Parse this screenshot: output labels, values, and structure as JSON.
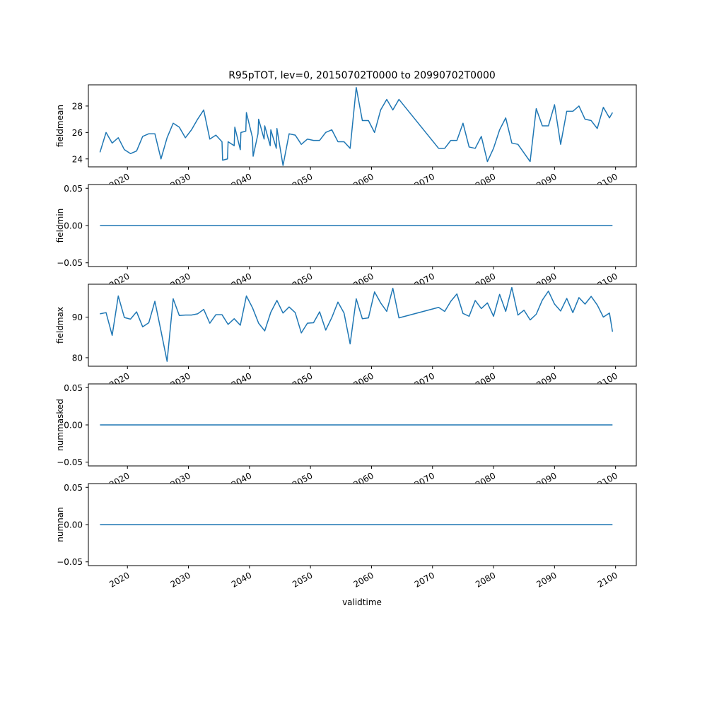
{
  "figure": {
    "title": "R95pTOT, lev=0, 20150702T0000 to 20990702T0000",
    "xlabel": "validtime"
  },
  "colors": {
    "line": "#1f77b4",
    "axes": "#000000",
    "background": "#ffffff"
  },
  "chart_data": [
    {
      "type": "line",
      "ylabel": "fieldmean",
      "ylim": [
        23.4,
        29.6
      ],
      "yticks": [
        24,
        26,
        28
      ],
      "xlim": [
        2013.6,
        2103.4
      ],
      "xticks": [
        2020,
        2030,
        2040,
        2050,
        2060,
        2070,
        2080,
        2090,
        2100
      ],
      "x": [
        2015.5,
        2016.5,
        2017.5,
        2018.5,
        2019.5,
        2020.5,
        2021.5,
        2022.5,
        2023.5,
        2024.5,
        2025.5,
        2026.5,
        2027.5,
        2028.5,
        2029.5,
        2030.5,
        2031.5,
        2032.5,
        2033.5,
        2034.5,
        2035.5,
        2035.6,
        2036.4,
        2036.5,
        2037.5,
        2037.6,
        2038.5,
        2038.6,
        2039.4,
        2039.5,
        2040.5,
        2040.6,
        2041.4,
        2041.5,
        2042.4,
        2042.5,
        2043.4,
        2043.5,
        2044.4,
        2044.5,
        2045.5,
        2046.5,
        2047.5,
        2048.5,
        2049.5,
        2050.5,
        2051.5,
        2052.5,
        2053.5,
        2054.5,
        2055.5,
        2056.5,
        2057.5,
        2058.5,
        2059.5,
        2060.5,
        2061.5,
        2062.5,
        2063.5,
        2064.5,
        2071.0,
        2072.0,
        2073.0,
        2074.0,
        2075.0,
        2076.0,
        2077.0,
        2078.0,
        2079.0,
        2080.0,
        2081.0,
        2082.0,
        2083.0,
        2084.0,
        2086.0,
        2087.0,
        2088.0,
        2089.0,
        2090.0,
        2091.0,
        2092.0,
        2093.0,
        2094.0,
        2095.0,
        2096.0,
        2097.0,
        2098.0,
        2099.0,
        2099.5
      ],
      "values": [
        24.5,
        26.0,
        25.2,
        25.6,
        24.7,
        24.4,
        24.6,
        25.7,
        25.9,
        25.9,
        24.0,
        25.6,
        26.7,
        26.4,
        25.6,
        26.2,
        27.0,
        27.7,
        25.5,
        25.8,
        25.3,
        23.9,
        24.0,
        25.3,
        25.0,
        26.4,
        24.7,
        26.0,
        26.1,
        27.5,
        25.6,
        24.2,
        25.9,
        27.0,
        25.5,
        26.5,
        25.0,
        26.2,
        24.8,
        26.3,
        23.5,
        25.9,
        25.8,
        25.1,
        25.5,
        25.4,
        25.4,
        26.0,
        26.2,
        25.3,
        25.3,
        24.8,
        29.4,
        26.9,
        26.9,
        26.0,
        27.7,
        28.5,
        27.7,
        28.5,
        24.8,
        24.8,
        25.4,
        25.4,
        26.7,
        24.9,
        24.8,
        25.7,
        23.8,
        24.8,
        26.2,
        27.1,
        25.2,
        25.1,
        23.8,
        27.8,
        26.5,
        26.5,
        28.1,
        25.1,
        27.6,
        27.6,
        28.0,
        27.0,
        26.9,
        26.3,
        27.9,
        27.1,
        27.5
      ]
    },
    {
      "type": "line",
      "ylabel": "fieldmin",
      "ylim": [
        -0.055,
        0.055
      ],
      "yticks": [
        -0.05,
        0.0,
        0.05
      ],
      "ytick_labels": [
        "−0.05",
        "0.00",
        "0.05"
      ],
      "xlim": [
        2013.6,
        2103.4
      ],
      "xticks": [
        2020,
        2030,
        2040,
        2050,
        2060,
        2070,
        2080,
        2090,
        2100
      ],
      "x": [
        2015.5,
        2099.5
      ],
      "values": [
        0.0,
        0.0
      ]
    },
    {
      "type": "line",
      "ylabel": "fieldmax",
      "ylim": [
        77.9,
        98.1
      ],
      "yticks": [
        80,
        90
      ],
      "xlim": [
        2013.6,
        2103.4
      ],
      "xticks": [
        2020,
        2030,
        2040,
        2050,
        2060,
        2070,
        2080,
        2090,
        2100
      ],
      "x": [
        2015.5,
        2016.5,
        2017.5,
        2018.5,
        2019.5,
        2020.5,
        2021.5,
        2022.5,
        2023.5,
        2024.5,
        2025.5,
        2026.5,
        2027.5,
        2028.5,
        2029.5,
        2030.5,
        2031.5,
        2032.5,
        2033.5,
        2034.5,
        2035.5,
        2036.5,
        2037.5,
        2038.5,
        2039.5,
        2040.5,
        2041.5,
        2042.5,
        2043.5,
        2044.5,
        2045.5,
        2046.5,
        2047.5,
        2048.5,
        2049.5,
        2050.5,
        2051.5,
        2052.5,
        2053.5,
        2054.5,
        2055.5,
        2056.5,
        2057.5,
        2058.5,
        2059.5,
        2060.5,
        2061.5,
        2062.5,
        2063.5,
        2064.5,
        2071.0,
        2072.0,
        2073.0,
        2074.0,
        2075.0,
        2076.0,
        2077.0,
        2078.0,
        2079.0,
        2080.0,
        2081.0,
        2082.0,
        2083.0,
        2084.0,
        2085.0,
        2086.0,
        2087.0,
        2088.0,
        2089.0,
        2090.0,
        2091.0,
        2092.0,
        2093.0,
        2094.0,
        2095.0,
        2096.0,
        2097.0,
        2098.0,
        2099.0,
        2099.5
      ],
      "values": [
        90.8,
        91.1,
        85.5,
        95.2,
        89.9,
        89.5,
        91.3,
        87.6,
        88.6,
        93.9,
        86.6,
        79.1,
        94.5,
        90.4,
        90.5,
        90.5,
        90.8,
        91.9,
        88.5,
        90.6,
        90.6,
        88.2,
        89.6,
        88.0,
        95.2,
        92.3,
        88.5,
        86.6,
        91.2,
        94.1,
        91.0,
        92.5,
        91.1,
        86.1,
        88.5,
        88.6,
        91.3,
        86.8,
        89.9,
        93.7,
        91.0,
        83.4,
        94.5,
        89.6,
        89.8,
        96.2,
        93.5,
        91.4,
        97.1,
        89.8,
        92.4,
        91.4,
        93.9,
        95.7,
        90.9,
        90.2,
        94.1,
        92.1,
        93.5,
        90.2,
        95.6,
        91.4,
        97.3,
        90.5,
        91.7,
        89.3,
        90.7,
        94.2,
        96.4,
        93.2,
        91.5,
        94.6,
        91.1,
        94.8,
        93.2,
        95.1,
        93.0,
        90.0,
        91.0,
        86.4
      ]
    },
    {
      "type": "line",
      "ylabel": "nummasked",
      "ylim": [
        -0.055,
        0.055
      ],
      "yticks": [
        -0.05,
        0.0,
        0.05
      ],
      "ytick_labels": [
        "−0.05",
        "0.00",
        "0.05"
      ],
      "xlim": [
        2013.6,
        2103.4
      ],
      "xticks": [
        2020,
        2030,
        2040,
        2050,
        2060,
        2070,
        2080,
        2090,
        2100
      ],
      "x": [
        2015.5,
        2099.5
      ],
      "values": [
        0.0,
        0.0
      ]
    },
    {
      "type": "line",
      "ylabel": "numnan",
      "ylim": [
        -0.055,
        0.055
      ],
      "yticks": [
        -0.05,
        0.0,
        0.05
      ],
      "ytick_labels": [
        "−0.05",
        "0.00",
        "0.05"
      ],
      "xlim": [
        2013.6,
        2103.4
      ],
      "xticks": [
        2020,
        2030,
        2040,
        2050,
        2060,
        2070,
        2080,
        2090,
        2100
      ],
      "x": [
        2015.5,
        2099.5
      ],
      "values": [
        0.0,
        0.0
      ]
    }
  ]
}
